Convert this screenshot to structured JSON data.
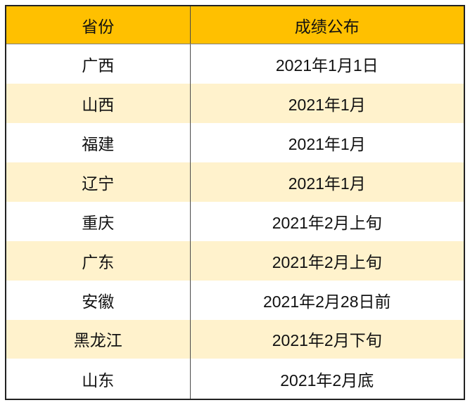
{
  "table": {
    "headers": [
      "省份",
      "成绩公布"
    ],
    "rows": [
      {
        "province": "广西",
        "announcement": "2021年1月1日"
      },
      {
        "province": "山西",
        "announcement": "2021年1月"
      },
      {
        "province": "福建",
        "announcement": "2021年1月"
      },
      {
        "province": "辽宁",
        "announcement": "2021年1月"
      },
      {
        "province": "重庆",
        "announcement": "2021年2月上旬"
      },
      {
        "province": "广东",
        "announcement": "2021年2月上旬"
      },
      {
        "province": "安徽",
        "announcement": "2021年2月28日前"
      },
      {
        "province": "黑龙江",
        "announcement": "2021年2月下旬"
      },
      {
        "province": "山东",
        "announcement": "2021年2月底"
      }
    ],
    "colors": {
      "header_bg": "#FFC000",
      "row_alt_bg": "#FFF2CC",
      "row_bg": "#FFFFFF",
      "border": "#222222",
      "divider": "#4A4A4A",
      "header_underline": "#808080",
      "text": "#111111"
    }
  },
  "chart_data": {
    "type": "table",
    "columns": [
      "省份",
      "成绩公布"
    ],
    "rows": [
      [
        "广西",
        "2021年1月1日"
      ],
      [
        "山西",
        "2021年1月"
      ],
      [
        "福建",
        "2021年1月"
      ],
      [
        "辽宁",
        "2021年1月"
      ],
      [
        "重庆",
        "2021年2月上旬"
      ],
      [
        "广东",
        "2021年2月上旬"
      ],
      [
        "安徽",
        "2021年2月28日前"
      ],
      [
        "黑龙江",
        "2021年2月下旬"
      ],
      [
        "山东",
        "2021年2月底"
      ]
    ]
  }
}
